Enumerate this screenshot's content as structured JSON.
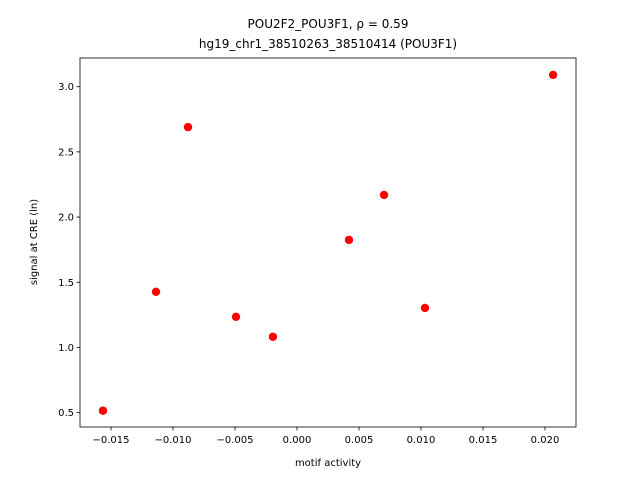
{
  "chart_data": {
    "type": "scatter",
    "title": "POU2F2_POU3F1, ρ = 0.59",
    "subtitle": "hg19_chr1_38510263_38510414 (POU3F1)",
    "x_label": "motif activity",
    "y_label": "signal at CRE (ln)",
    "color": "#ff0000",
    "x": [
      -0.01565,
      -0.01137,
      -0.00879,
      -0.00492,
      -0.00194,
      0.00419,
      0.00702,
      0.01032,
      0.02065
    ],
    "values": [
      0.515,
      1.427,
      2.69,
      1.235,
      1.082,
      1.825,
      2.17,
      1.303,
      3.09
    ],
    "xlim": [
      -0.0175,
      0.0225
    ],
    "ylim": [
      0.39,
      3.22
    ],
    "xticks": [
      {
        "value": -0.015,
        "label": "−0.015"
      },
      {
        "value": -0.01,
        "label": "−0.010"
      },
      {
        "value": -0.005,
        "label": "−0.005"
      },
      {
        "value": 0,
        "label": "0.000"
      },
      {
        "value": 0.005,
        "label": "0.005"
      },
      {
        "value": 0.01,
        "label": "0.010"
      },
      {
        "value": 0.015,
        "label": "0.015"
      },
      {
        "value": 0.02,
        "label": "0.020"
      }
    ],
    "yticks": [
      0.5,
      {
        "value": 1,
        "label": "1.0"
      },
      1.5,
      {
        "value": 2,
        "label": "2.0"
      },
      2.5,
      {
        "value": 3,
        "label": "3.0"
      }
    ]
  }
}
